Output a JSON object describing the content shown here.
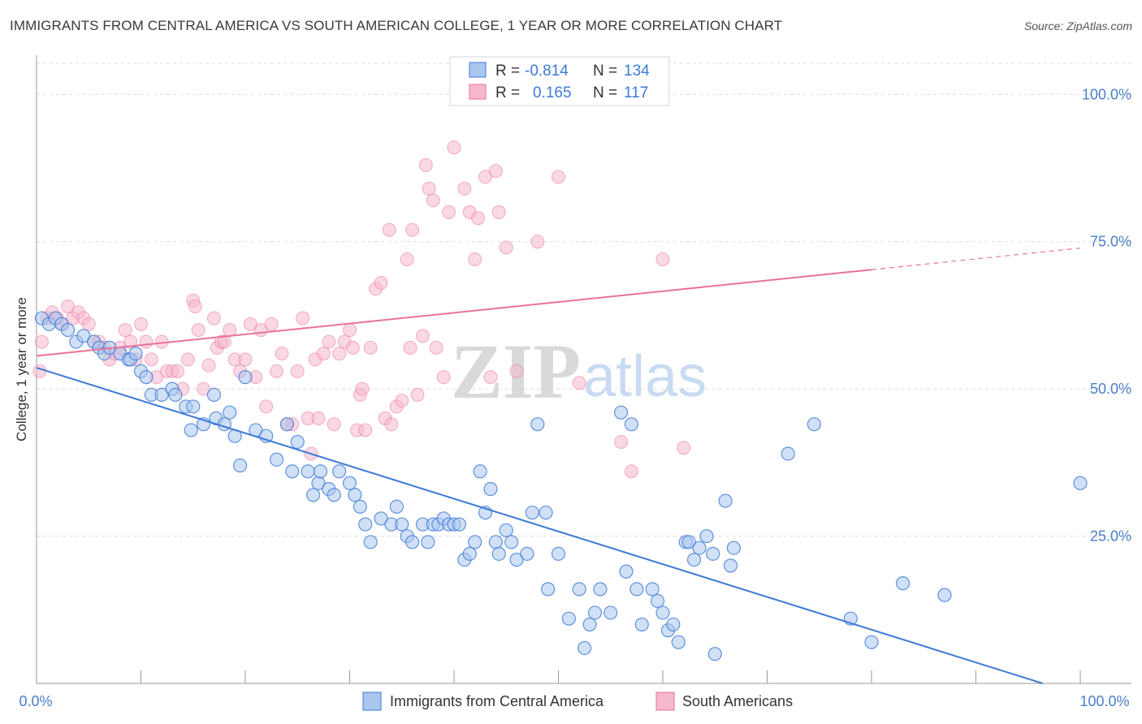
{
  "title": "IMMIGRANTS FROM CENTRAL AMERICA VS SOUTH AMERICAN COLLEGE, 1 YEAR OR MORE CORRELATION CHART",
  "source": "Source: ZipAtlas.com",
  "watermark": {
    "zip": "ZIP",
    "atlas": "atlas"
  },
  "colors": {
    "blue": "#3d7ad6",
    "pink": "#e8729a",
    "blue_fill": "#a9c6ef",
    "pink_fill": "#f6b8cc"
  },
  "legend": {
    "r_label": "R =",
    "n_label": "N =",
    "blue": {
      "r": "-0.814",
      "n": "134"
    },
    "pink": {
      "r": "0.165",
      "n": "117"
    }
  },
  "chart_data": {
    "type": "scatter",
    "title": "IMMIGRANTS FROM CENTRAL AMERICA VS SOUTH AMERICAN COLLEGE, 1 YEAR OR MORE CORRELATION CHART",
    "xlabel": "",
    "ylabel": "College, 1 year or more",
    "xlim": [
      0,
      100
    ],
    "ylim": [
      0,
      105
    ],
    "x_ticks": [
      "0.0%",
      "100.0%"
    ],
    "y_ticks": [
      {
        "value": 100,
        "label": "100.0%"
      },
      {
        "value": 75,
        "label": "75.0%"
      },
      {
        "value": 50,
        "label": "50.0%"
      },
      {
        "value": 25,
        "label": "25.0%"
      }
    ],
    "grid": true,
    "legend_position": "top-center",
    "series": [
      {
        "name": "Immigrants from Central America",
        "color": "#3d7ad6",
        "trend": {
          "x": [
            0,
            100
          ],
          "y": [
            53.6,
            -2.0
          ]
        },
        "points": [
          [
            0.5,
            62
          ],
          [
            1.2,
            61
          ],
          [
            1.8,
            62
          ],
          [
            2.4,
            61
          ],
          [
            3,
            60
          ],
          [
            3.8,
            58
          ],
          [
            4.5,
            59
          ],
          [
            5.5,
            58
          ],
          [
            6,
            57
          ],
          [
            6.5,
            56
          ],
          [
            7,
            57
          ],
          [
            8,
            56
          ],
          [
            8.8,
            55
          ],
          [
            9,
            55
          ],
          [
            9.5,
            56
          ],
          [
            10,
            53
          ],
          [
            10.5,
            52
          ],
          [
            11,
            49
          ],
          [
            12,
            49
          ],
          [
            13,
            50
          ],
          [
            13.3,
            49
          ],
          [
            14.3,
            47
          ],
          [
            14.8,
            43
          ],
          [
            15,
            47
          ],
          [
            16,
            44
          ],
          [
            17,
            49
          ],
          [
            17.2,
            45
          ],
          [
            18,
            44
          ],
          [
            18.5,
            46
          ],
          [
            19,
            42
          ],
          [
            19.5,
            37
          ],
          [
            20,
            52
          ],
          [
            21,
            43
          ],
          [
            22,
            42
          ],
          [
            23,
            38
          ],
          [
            24,
            44
          ],
          [
            24.5,
            36
          ],
          [
            25,
            41
          ],
          [
            26,
            36
          ],
          [
            26.5,
            32
          ],
          [
            27,
            34
          ],
          [
            27.2,
            36
          ],
          [
            28,
            33
          ],
          [
            28.5,
            32
          ],
          [
            29,
            36
          ],
          [
            30,
            34
          ],
          [
            30.5,
            32
          ],
          [
            31,
            30
          ],
          [
            31.5,
            27
          ],
          [
            32,
            24
          ],
          [
            33,
            28
          ],
          [
            34,
            27
          ],
          [
            34.5,
            30
          ],
          [
            35,
            27
          ],
          [
            35.5,
            25
          ],
          [
            36,
            24
          ],
          [
            37,
            27
          ],
          [
            37.5,
            24
          ],
          [
            38,
            27
          ],
          [
            38.5,
            27
          ],
          [
            39,
            28
          ],
          [
            39.5,
            27
          ],
          [
            40,
            27
          ],
          [
            40.5,
            27
          ],
          [
            41,
            21
          ],
          [
            41.5,
            22
          ],
          [
            42,
            24
          ],
          [
            42.5,
            36
          ],
          [
            43,
            29
          ],
          [
            43.5,
            33
          ],
          [
            44,
            24
          ],
          [
            44.3,
            22
          ],
          [
            45,
            26
          ],
          [
            45.5,
            24
          ],
          [
            46,
            21
          ],
          [
            47,
            22
          ],
          [
            47.5,
            29
          ],
          [
            48,
            44
          ],
          [
            48.8,
            29
          ],
          [
            49,
            16
          ],
          [
            50,
            22
          ],
          [
            51,
            11
          ],
          [
            52,
            16
          ],
          [
            52.5,
            6
          ],
          [
            53,
            10
          ],
          [
            53.5,
            12
          ],
          [
            54,
            16
          ],
          [
            55,
            12
          ],
          [
            56,
            46
          ],
          [
            56.5,
            19
          ],
          [
            57,
            44
          ],
          [
            57.5,
            16
          ],
          [
            58,
            10
          ],
          [
            59,
            16
          ],
          [
            59.5,
            14
          ],
          [
            60,
            12
          ],
          [
            60.5,
            9
          ],
          [
            61,
            10
          ],
          [
            61.5,
            7
          ],
          [
            62.2,
            24
          ],
          [
            62.5,
            24
          ],
          [
            63,
            21
          ],
          [
            63.5,
            23
          ],
          [
            64.2,
            25
          ],
          [
            64.8,
            22
          ],
          [
            65,
            5
          ],
          [
            66,
            31
          ],
          [
            66.5,
            20
          ],
          [
            66.8,
            23
          ],
          [
            72,
            39
          ],
          [
            74.5,
            44
          ],
          [
            78,
            11
          ],
          [
            80,
            7
          ],
          [
            83,
            17
          ],
          [
            87,
            15
          ],
          [
            100,
            34
          ]
        ]
      },
      {
        "name": "South Americans",
        "color": "#e8729a",
        "trend": {
          "x": [
            0,
            100
          ],
          "y": [
            55.6,
            73.9
          ]
        },
        "points": [
          [
            0.3,
            53
          ],
          [
            0.5,
            58
          ],
          [
            1,
            62
          ],
          [
            1.5,
            63
          ],
          [
            2,
            62
          ],
          [
            2.5,
            61
          ],
          [
            3,
            64
          ],
          [
            3.5,
            62
          ],
          [
            4,
            63
          ],
          [
            4.5,
            62
          ],
          [
            5,
            61
          ],
          [
            5.5,
            58
          ],
          [
            6,
            58
          ],
          [
            6.5,
            57
          ],
          [
            7,
            55
          ],
          [
            7.5,
            56
          ],
          [
            8,
            57
          ],
          [
            8.5,
            60
          ],
          [
            9,
            58
          ],
          [
            9.5,
            55
          ],
          [
            10,
            61
          ],
          [
            10.5,
            58
          ],
          [
            11,
            55
          ],
          [
            11.5,
            52
          ],
          [
            12,
            58
          ],
          [
            12.5,
            53
          ],
          [
            13,
            53
          ],
          [
            13.5,
            53
          ],
          [
            14,
            50
          ],
          [
            14.5,
            55
          ],
          [
            15,
            65
          ],
          [
            15.2,
            64
          ],
          [
            15.5,
            60
          ],
          [
            16,
            50
          ],
          [
            16.5,
            54
          ],
          [
            17,
            62
          ],
          [
            17.3,
            57
          ],
          [
            17.7,
            58
          ],
          [
            18,
            58
          ],
          [
            18.5,
            60
          ],
          [
            19,
            55
          ],
          [
            19.5,
            53
          ],
          [
            20,
            55
          ],
          [
            20.5,
            61
          ],
          [
            21,
            52
          ],
          [
            21.5,
            60
          ],
          [
            22,
            47
          ],
          [
            22.5,
            61
          ],
          [
            23,
            53
          ],
          [
            23.5,
            56
          ],
          [
            24,
            44
          ],
          [
            24.5,
            44
          ],
          [
            25,
            53
          ],
          [
            25.5,
            62
          ],
          [
            26,
            45
          ],
          [
            26.3,
            39
          ],
          [
            26.7,
            55
          ],
          [
            27,
            45
          ],
          [
            27.5,
            56
          ],
          [
            28,
            58
          ],
          [
            28.5,
            44
          ],
          [
            29,
            56
          ],
          [
            29.5,
            58
          ],
          [
            30,
            60
          ],
          [
            30.3,
            57
          ],
          [
            30.7,
            43
          ],
          [
            31,
            49
          ],
          [
            31.2,
            50
          ],
          [
            31.5,
            43
          ],
          [
            32,
            57
          ],
          [
            32.5,
            67
          ],
          [
            33,
            68
          ],
          [
            33.4,
            45
          ],
          [
            33.8,
            77
          ],
          [
            34,
            44
          ],
          [
            34.5,
            47
          ],
          [
            35,
            48
          ],
          [
            35.5,
            72
          ],
          [
            35.8,
            57
          ],
          [
            36,
            77
          ],
          [
            36.5,
            49
          ],
          [
            37,
            59
          ],
          [
            37.3,
            88
          ],
          [
            37.6,
            84
          ],
          [
            38,
            82
          ],
          [
            38.3,
            57
          ],
          [
            39,
            52
          ],
          [
            39.5,
            80
          ],
          [
            40,
            91
          ],
          [
            41,
            84
          ],
          [
            41.5,
            80
          ],
          [
            42,
            72
          ],
          [
            42.3,
            79
          ],
          [
            43,
            86
          ],
          [
            43.5,
            52
          ],
          [
            44,
            87
          ],
          [
            44.3,
            80
          ],
          [
            45,
            74
          ],
          [
            46,
            53
          ],
          [
            47,
            100
          ],
          [
            47.5,
            100
          ],
          [
            48,
            75
          ],
          [
            50,
            86
          ],
          [
            52,
            51
          ],
          [
            56,
            41
          ],
          [
            57,
            36
          ],
          [
            60,
            72
          ],
          [
            62,
            40
          ]
        ]
      }
    ]
  },
  "bottom_legend": {
    "blue_label": "Immigrants from Central America",
    "pink_label": "South Americans"
  }
}
